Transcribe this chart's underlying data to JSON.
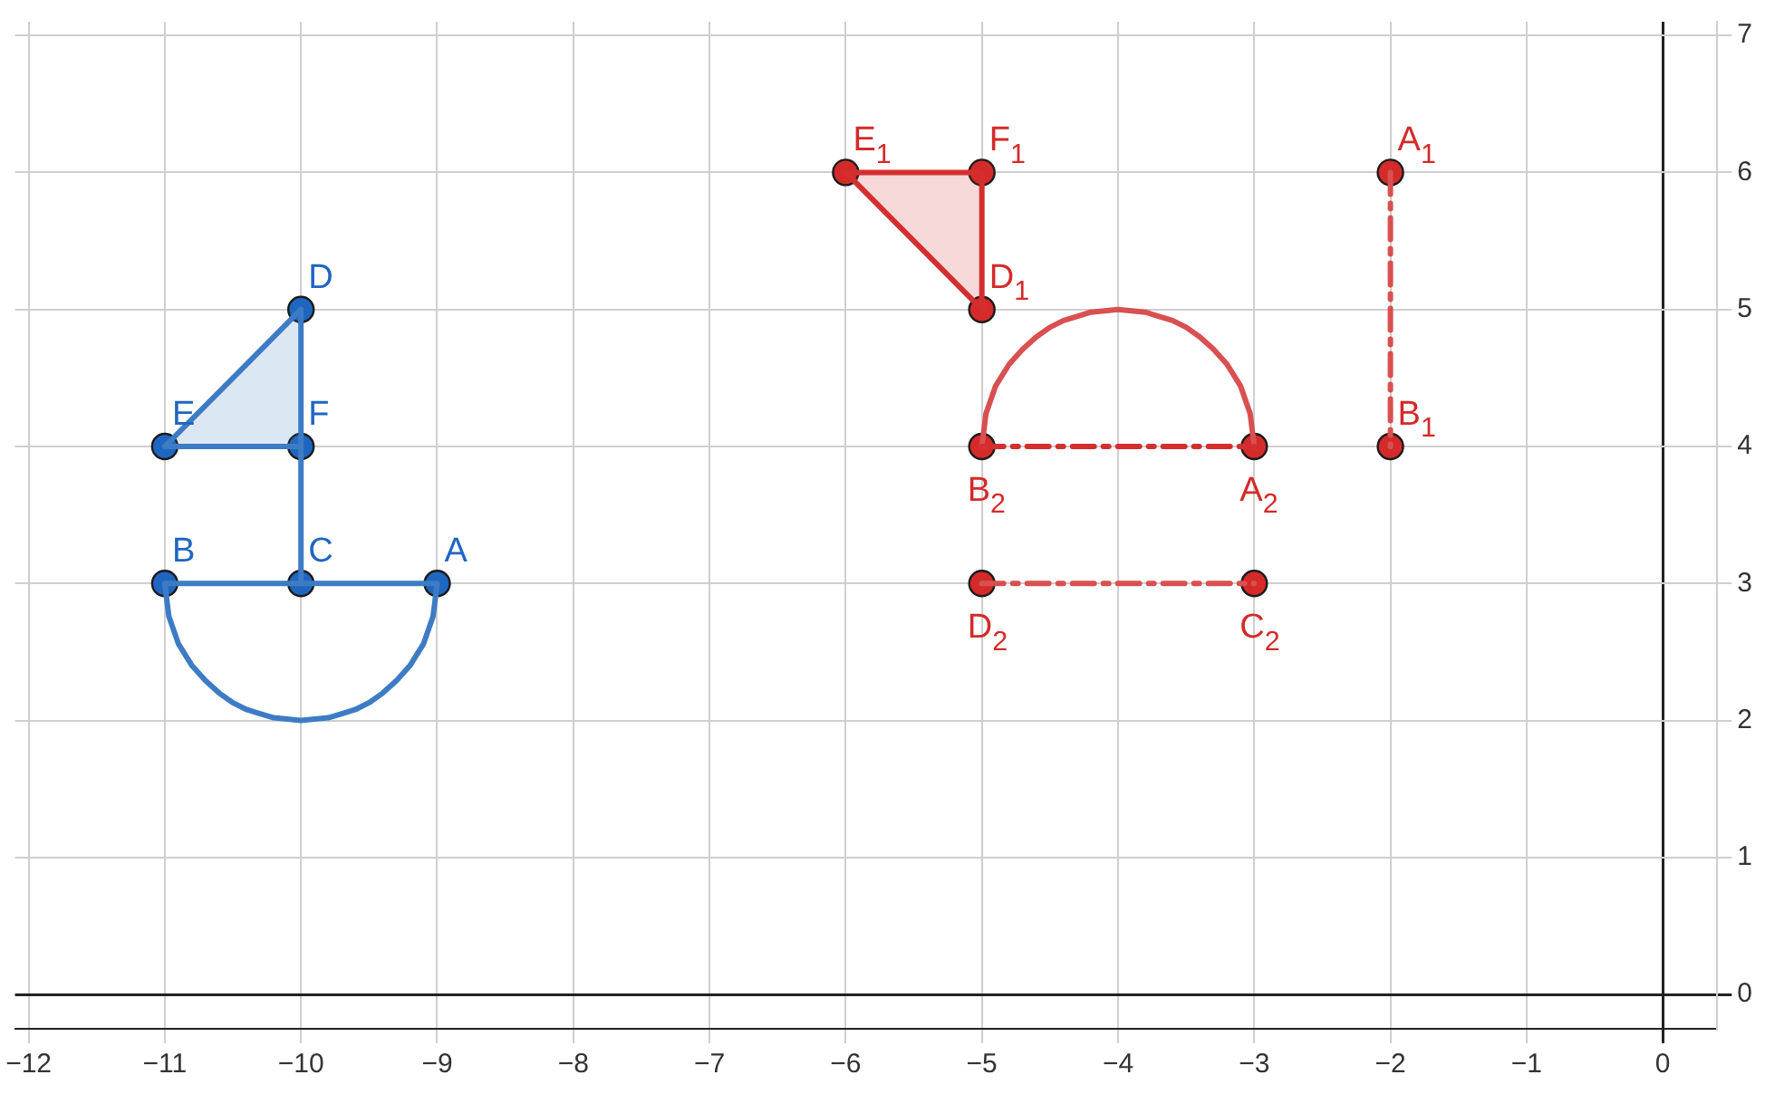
{
  "chart_data": {
    "type": "line",
    "xlim": [
      -12.1,
      0.4
    ],
    "ylim": [
      -0.25,
      7.1
    ],
    "xticks": [
      {
        "value": -12,
        "label": "−12"
      },
      {
        "value": -11,
        "label": "−11"
      },
      {
        "value": -10,
        "label": "−10"
      },
      {
        "value": -9,
        "label": "−9"
      },
      {
        "value": -8,
        "label": "−8"
      },
      {
        "value": -7,
        "label": "−7"
      },
      {
        "value": -6,
        "label": "−6"
      },
      {
        "value": -5,
        "label": "−5"
      },
      {
        "value": -4,
        "label": "−4"
      },
      {
        "value": -3,
        "label": "−3"
      },
      {
        "value": -2,
        "label": "−2"
      },
      {
        "value": -1,
        "label": "−1"
      },
      0
    ],
    "yticks": [
      0,
      1,
      2,
      3,
      4,
      5,
      6,
      7
    ],
    "grid": true,
    "legend": false,
    "series": [
      {
        "type": "area",
        "color": "#3d7cc4",
        "x": [
          -10,
          -11,
          -10,
          -10
        ],
        "values": [
          5,
          4,
          4,
          5
        ],
        "marker": "none"
      },
      {
        "color": "#3d7cc4",
        "x": [
          -11,
          -10,
          -9
        ],
        "values": [
          3,
          3,
          3
        ],
        "marker": "none"
      },
      {
        "color": "#3d7cc4",
        "x": [
          -10,
          -10
        ],
        "values": [
          3,
          4
        ],
        "marker": "none"
      },
      {
        "color": "#3d7cc4",
        "x": [
          -11,
          -10.97,
          -10.9,
          -10.8,
          -10.7,
          -10.6,
          -10.5,
          -10.4,
          -10.3,
          -10.2,
          -10.1,
          -10,
          -9.9,
          -9.8,
          -9.7,
          -9.6,
          -9.5,
          -9.4,
          -9.3,
          -9.2,
          -9.1,
          -9.03,
          -9
        ],
        "values": [
          3,
          2.76,
          2.56,
          2.4,
          2.29,
          2.2,
          2.13,
          2.08,
          2.05,
          2.02,
          2.01,
          2,
          2.01,
          2.02,
          2.05,
          2.08,
          2.13,
          2.2,
          2.29,
          2.4,
          2.56,
          2.76,
          3
        ],
        "marker": "none"
      },
      {
        "type": "area",
        "color": "#d32f2f",
        "x": [
          -6,
          -5,
          -5,
          -6
        ],
        "values": [
          6,
          6,
          5,
          6
        ],
        "marker": "none"
      },
      {
        "color": "#d95050",
        "x": [
          -2,
          -2
        ],
        "values": [
          6,
          4
        ],
        "marker": "none",
        "line_style": "dashed"
      },
      {
        "color": "#d32f2f",
        "x": [
          -5,
          -3
        ],
        "values": [
          4,
          4
        ],
        "marker": "none",
        "line_style": "dashed"
      },
      {
        "color": "#d95050",
        "x": [
          -5,
          -3
        ],
        "values": [
          3,
          3
        ],
        "marker": "none",
        "line_style": "dashed"
      },
      {
        "color": "#d95050",
        "x": [
          -5,
          -4.97,
          -4.9,
          -4.8,
          -4.7,
          -4.6,
          -4.5,
          -4.4,
          -4.3,
          -4.2,
          -4.1,
          -4,
          -3.9,
          -3.8,
          -3.7,
          -3.6,
          -3.5,
          -3.4,
          -3.3,
          -3.2,
          -3.1,
          -3.03,
          -3
        ],
        "values": [
          4,
          4.24,
          4.44,
          4.6,
          4.71,
          4.8,
          4.87,
          4.92,
          4.95,
          4.98,
          4.99,
          5,
          4.99,
          4.98,
          4.95,
          4.92,
          4.87,
          4.8,
          4.71,
          4.6,
          4.44,
          4.24,
          4
        ],
        "marker": "none"
      },
      {
        "type": "scatter",
        "color": "#1f66c0",
        "x": [
          -9,
          -11,
          -10,
          -10,
          -11,
          -10
        ],
        "values": [
          3,
          3,
          3,
          5,
          4,
          4
        ],
        "marker": "circle"
      },
      {
        "type": "scatter",
        "color": "#d42a2a",
        "x": [
          -6,
          -5,
          -5,
          -2,
          -2,
          -5,
          -3,
          -5,
          -3
        ],
        "values": [
          6,
          6,
          5,
          6,
          4,
          4,
          4,
          3,
          3
        ],
        "marker": "circle"
      }
    ],
    "annotations": [
      {
        "text": "A",
        "x": -9,
        "y": 3
      },
      {
        "text": "B",
        "x": -11,
        "y": 3
      },
      {
        "text": "C",
        "x": -10,
        "y": 3
      },
      {
        "text": "D",
        "x": -10,
        "y": 5
      },
      {
        "text": "E",
        "x": -11,
        "y": 4
      },
      {
        "text": "F",
        "x": -10,
        "y": 4
      },
      {
        "text": "E$_{1}$",
        "x": -6,
        "y": 6
      },
      {
        "text": "F$_{1}$",
        "x": -5,
        "y": 6
      },
      {
        "text": "D$_{1}$",
        "x": -5,
        "y": 5
      },
      {
        "text": "A$_{1}$",
        "x": -2,
        "y": 6
      },
      {
        "text": "B$_{1}$",
        "x": -2,
        "y": 4
      },
      {
        "text": "B$_{2}$",
        "x": -5,
        "y": 4
      },
      {
        "text": "A$_{2}$",
        "x": -3,
        "y": 4
      },
      {
        "text": "D$_{2}$",
        "x": -5,
        "y": 3
      },
      {
        "text": "C$_{2}$",
        "x": -3,
        "y": 3
      }
    ]
  }
}
